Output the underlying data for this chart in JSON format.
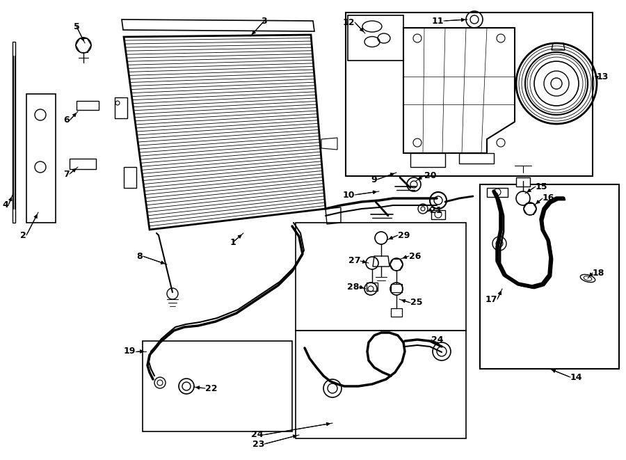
{
  "bg_color": "#ffffff",
  "lc": "#000000",
  "fig_w": 9.0,
  "fig_h": 6.61,
  "dpi": 100
}
